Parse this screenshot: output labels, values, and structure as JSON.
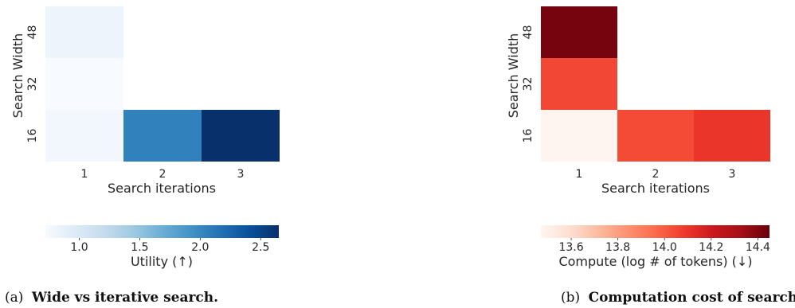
{
  "chart_data": [
    {
      "type": "heatmap",
      "caption_tag": "(a)",
      "caption": "Wide vs iterative search.",
      "xlabel": "Search iterations",
      "ylabel": "Search Width",
      "x_categories": [
        "1",
        "2",
        "3"
      ],
      "y_categories": [
        "48",
        "32",
        "16"
      ],
      "cells": [
        {
          "x": "1",
          "y": "48",
          "value": 0.82
        },
        {
          "x": "1",
          "y": "32",
          "value": 0.72
        },
        {
          "x": "1",
          "y": "16",
          "value": 0.78
        },
        {
          "x": "2",
          "y": "16",
          "value": 2.05
        },
        {
          "x": "3",
          "y": "16",
          "value": 2.65
        }
      ],
      "colormap": "Blues",
      "color_range": [
        0.72,
        2.65
      ],
      "colorbar_label": "Utility (↑)",
      "colorbar_ticks": [
        "1.0",
        "1.5",
        "2.0",
        "2.5"
      ],
      "colorbar_tick_values": [
        1.0,
        1.5,
        2.0,
        2.5
      ]
    },
    {
      "type": "heatmap",
      "caption_tag": "(b)",
      "caption": "Computation cost of search.",
      "xlabel": "Search iterations",
      "ylabel": "Search Width",
      "x_categories": [
        "1",
        "2",
        "3"
      ],
      "y_categories": [
        "48",
        "32",
        "16"
      ],
      "cells": [
        {
          "x": "1",
          "y": "48",
          "value": 14.42
        },
        {
          "x": "1",
          "y": "32",
          "value": 14.05
        },
        {
          "x": "1",
          "y": "16",
          "value": 13.47
        },
        {
          "x": "2",
          "y": "16",
          "value": 14.04
        },
        {
          "x": "3",
          "y": "16",
          "value": 14.1
        }
      ],
      "colormap": "Reds",
      "color_range": [
        13.47,
        14.45
      ],
      "colorbar_label": "Compute (log # of tokens) (↓)",
      "colorbar_ticks": [
        "13.6",
        "13.8",
        "14.0",
        "14.2",
        "14.4"
      ],
      "colorbar_tick_values": [
        13.6,
        13.8,
        14.0,
        14.2,
        14.4
      ]
    }
  ]
}
